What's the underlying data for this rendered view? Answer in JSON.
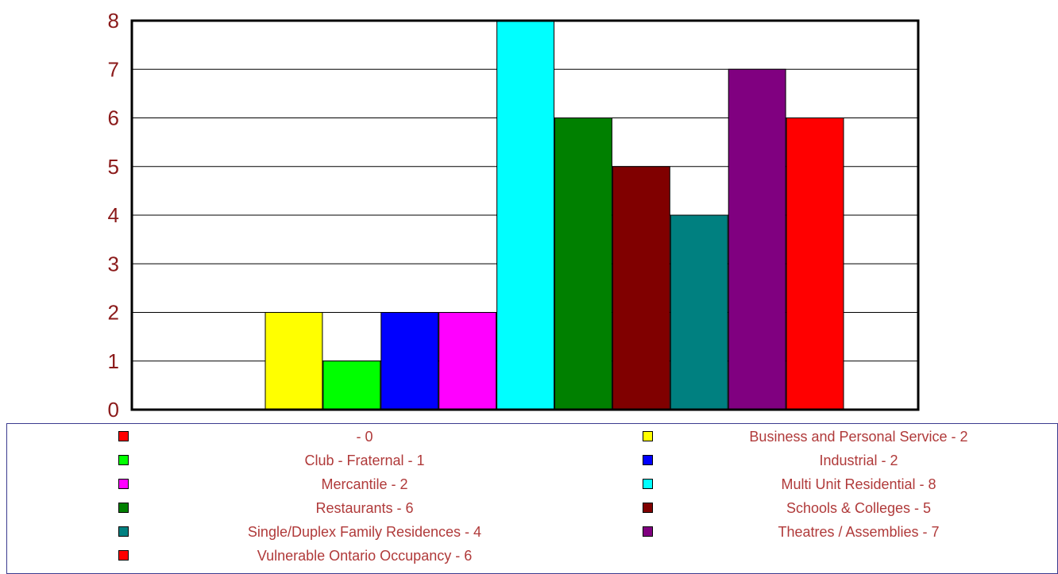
{
  "chart_data": {
    "type": "bar",
    "categories": [
      "",
      "Business and Personal Service",
      "Club - Fraternal",
      "Industrial",
      "Mercantile",
      "Multi Unit Residential",
      "Restaurants",
      "Schools & Colleges",
      "Single/Duplex Family Residences",
      "Theatres / Assemblies",
      "Vulnerable Ontario Occupancy"
    ],
    "values": [
      0,
      2,
      1,
      2,
      2,
      8,
      6,
      5,
      4,
      7,
      6
    ],
    "colors": [
      "#ff0000",
      "#ffff00",
      "#00ff00",
      "#0000ff",
      "#ff00ff",
      "#00ffff",
      "#008000",
      "#800000",
      "#008080",
      "#800080",
      "#ff0000"
    ],
    "ylim": [
      0,
      8
    ],
    "yticks": [
      "0",
      "1",
      "2",
      "3",
      "4",
      "5",
      "6",
      "7",
      "8"
    ],
    "grid": true,
    "legend_position": "bottom",
    "legend": [
      {
        "label": " - 0",
        "color": "#ff0000"
      },
      {
        "label": "Business and Personal Service - 2",
        "color": "#ffff00"
      },
      {
        "label": "Club - Fraternal - 1",
        "color": "#00ff00"
      },
      {
        "label": "Industrial - 2",
        "color": "#0000ff"
      },
      {
        "label": "Mercantile - 2",
        "color": "#ff00ff"
      },
      {
        "label": "Multi Unit Residential - 8",
        "color": "#00ffff"
      },
      {
        "label": "Restaurants - 6",
        "color": "#008000"
      },
      {
        "label": "Schools & Colleges - 5",
        "color": "#800000"
      },
      {
        "label": "Single/Duplex Family Residences - 4",
        "color": "#008080"
      },
      {
        "label": "Theatres / Assemblies - 7",
        "color": "#800080"
      },
      {
        "label": "Vulnerable Ontario Occupancy - 6",
        "color": "#ff0000"
      }
    ]
  }
}
